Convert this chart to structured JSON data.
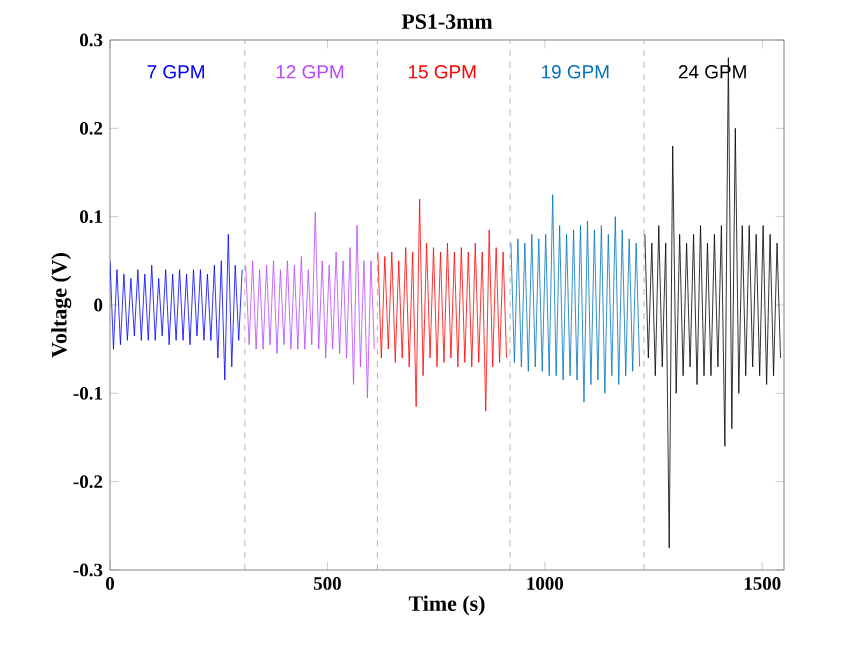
{
  "chart_data": {
    "type": "line",
    "title": "PS1-3mm",
    "xlabel": "Time (s)",
    "ylabel": "Voltage (V)",
    "xlim": [
      0,
      1550
    ],
    "xticks": [
      0,
      500,
      1000,
      1500
    ],
    "ylim": [
      -0.3,
      0.3
    ],
    "yticks": [
      -0.3,
      -0.2,
      -0.1,
      0,
      0.1,
      0.2,
      0.3
    ],
    "ref_lines": [
      {
        "axis": "x",
        "value": 310,
        "color": "#a0a0a0",
        "line_style": "dashed"
      },
      {
        "axis": "x",
        "value": 615,
        "color": "#a0a0a0",
        "line_style": "dashed"
      },
      {
        "axis": "x",
        "value": 920,
        "color": "#a0a0a0",
        "line_style": "dashed"
      },
      {
        "axis": "x",
        "value": 1228,
        "color": "#a0a0a0",
        "line_style": "dashed"
      }
    ],
    "series": [
      {
        "name": "7 GPM",
        "color": "#0000ff",
        "x": [
          0,
          8,
          16,
          24,
          32,
          40,
          48,
          56,
          64,
          72,
          80,
          88,
          96,
          104,
          112,
          120,
          128,
          136,
          144,
          152,
          160,
          168,
          176,
          184,
          192,
          200,
          208,
          216,
          224,
          232,
          240,
          248,
          256,
          264,
          272,
          280,
          288,
          296,
          304
        ],
        "values": [
          0.05,
          -0.05,
          0.04,
          -0.045,
          0.035,
          -0.04,
          0.03,
          -0.035,
          0.04,
          -0.04,
          0.035,
          -0.04,
          0.045,
          -0.04,
          0.03,
          -0.035,
          0.04,
          -0.045,
          0.035,
          -0.04,
          0.04,
          -0.04,
          0.035,
          -0.045,
          0.04,
          -0.035,
          0.04,
          -0.04,
          0.035,
          -0.04,
          0.045,
          -0.06,
          0.05,
          -0.085,
          0.08,
          -0.07,
          0.045,
          -0.04,
          0.04
        ]
      },
      {
        "name": "12 GPM",
        "color": "#b847ff",
        "x": [
          312,
          320,
          328,
          336,
          344,
          352,
          360,
          368,
          376,
          384,
          392,
          400,
          408,
          416,
          424,
          432,
          440,
          448,
          456,
          464,
          472,
          480,
          488,
          496,
          504,
          512,
          520,
          528,
          536,
          544,
          552,
          560,
          568,
          576,
          584,
          592,
          600,
          608
        ],
        "values": [
          0.045,
          -0.045,
          0.05,
          -0.05,
          0.04,
          -0.05,
          0.045,
          -0.045,
          0.05,
          -0.055,
          0.04,
          -0.045,
          0.05,
          -0.05,
          0.045,
          -0.05,
          0.055,
          -0.05,
          0.04,
          -0.045,
          0.105,
          -0.05,
          0.05,
          -0.06,
          0.045,
          -0.05,
          0.06,
          -0.055,
          0.05,
          -0.06,
          0.065,
          -0.09,
          0.09,
          -0.07,
          0.05,
          -0.105,
          0.05,
          -0.05
        ]
      },
      {
        "name": "15 GPM",
        "color": "#ff0000",
        "x": [
          616,
          624,
          632,
          640,
          648,
          656,
          664,
          672,
          680,
          688,
          696,
          704,
          712,
          720,
          728,
          736,
          744,
          752,
          760,
          768,
          776,
          784,
          792,
          800,
          808,
          816,
          824,
          832,
          840,
          848,
          856,
          864,
          872,
          880,
          888,
          896,
          904,
          912
        ],
        "values": [
          0.06,
          -0.06,
          0.055,
          -0.05,
          0.06,
          -0.065,
          0.05,
          -0.06,
          0.065,
          -0.07,
          0.06,
          -0.115,
          0.12,
          -0.08,
          0.07,
          -0.06,
          0.065,
          -0.07,
          0.06,
          -0.065,
          0.07,
          -0.06,
          0.06,
          -0.07,
          0.065,
          -0.065,
          0.06,
          -0.07,
          0.07,
          -0.065,
          0.06,
          -0.12,
          0.085,
          -0.07,
          0.065,
          -0.065,
          0.06,
          -0.06
        ]
      },
      {
        "name": "19 GPM",
        "color": "#0072bd",
        "x": [
          922,
          930,
          938,
          946,
          954,
          962,
          970,
          978,
          986,
          994,
          1002,
          1010,
          1018,
          1026,
          1034,
          1042,
          1050,
          1058,
          1066,
          1074,
          1082,
          1090,
          1098,
          1106,
          1114,
          1122,
          1130,
          1138,
          1146,
          1154,
          1162,
          1170,
          1178,
          1186,
          1194,
          1202,
          1210,
          1218
        ],
        "values": [
          0.07,
          -0.065,
          0.075,
          -0.07,
          0.07,
          -0.075,
          0.08,
          -0.07,
          0.075,
          -0.075,
          0.08,
          -0.08,
          0.125,
          -0.08,
          0.09,
          -0.085,
          0.08,
          -0.08,
          0.085,
          -0.085,
          0.09,
          -0.11,
          0.095,
          -0.09,
          0.085,
          -0.085,
          0.09,
          -0.1,
          0.08,
          -0.08,
          0.1,
          -0.09,
          0.085,
          -0.08,
          0.075,
          -0.075,
          0.07,
          -0.07
        ]
      },
      {
        "name": "24 GPM",
        "color": "#000000",
        "x": [
          1230,
          1238,
          1246,
          1254,
          1262,
          1270,
          1278,
          1286,
          1294,
          1302,
          1310,
          1318,
          1326,
          1334,
          1342,
          1350,
          1358,
          1366,
          1374,
          1382,
          1390,
          1398,
          1406,
          1414,
          1422,
          1430,
          1438,
          1446,
          1454,
          1462,
          1470,
          1478,
          1486,
          1494,
          1502,
          1510,
          1518,
          1526,
          1534,
          1542
        ],
        "values": [
          0.08,
          -0.06,
          0.07,
          -0.08,
          0.09,
          -0.07,
          0.07,
          -0.275,
          0.18,
          -0.1,
          0.08,
          -0.08,
          0.07,
          -0.07,
          0.08,
          -0.09,
          0.09,
          -0.08,
          0.07,
          -0.08,
          0.08,
          -0.07,
          0.09,
          -0.16,
          0.28,
          -0.14,
          0.2,
          -0.1,
          0.09,
          -0.08,
          0.09,
          -0.07,
          0.08,
          -0.08,
          0.09,
          -0.09,
          0.08,
          -0.08,
          0.07,
          -0.06
        ]
      }
    ]
  }
}
